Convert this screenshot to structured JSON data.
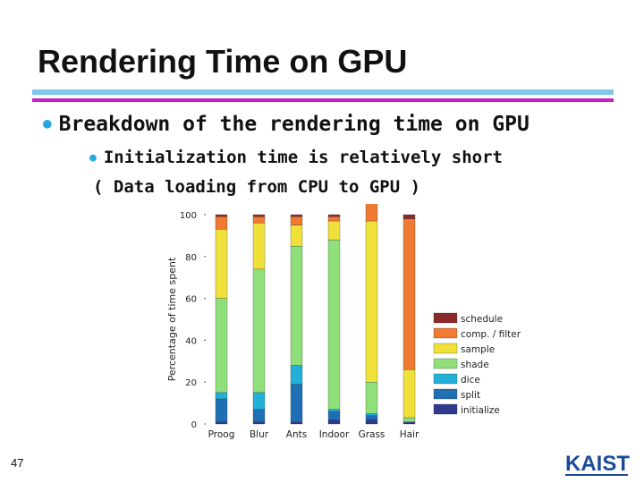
{
  "slide": {
    "title": "Rendering Time on GPU",
    "bullet1": "Breakdown of the rendering time on GPU",
    "bullet2_line1": "Initialization time is relatively short",
    "bullet2_line2": "( Data loading from CPU to GPU )",
    "bullet_glyph": "●",
    "page_number": "47",
    "logo": "KAIST"
  },
  "chart_data": {
    "type": "bar",
    "stacked": true,
    "ylabel": "Percentage of time spent",
    "xlabel": "",
    "ylim": [
      0,
      100
    ],
    "yticks": [
      0,
      20,
      40,
      60,
      80,
      100
    ],
    "categories": [
      "Proog",
      "Blur",
      "Ants",
      "Indoor",
      "Grass",
      "Hair"
    ],
    "series": [
      {
        "name": "initialize",
        "color": "#2e3a8c",
        "values": [
          1,
          1,
          1,
          2,
          2,
          1
        ]
      },
      {
        "name": "split",
        "color": "#1f6fb5",
        "values": [
          11,
          6,
          18,
          4,
          2,
          0
        ]
      },
      {
        "name": "dice",
        "color": "#22b0d8",
        "values": [
          3,
          8,
          9,
          1,
          1,
          0
        ]
      },
      {
        "name": "shade",
        "color": "#8fe07a",
        "values": [
          45,
          59,
          57,
          81,
          15,
          2
        ]
      },
      {
        "name": "sample",
        "color": "#f0e03a",
        "values": [
          33,
          22,
          10,
          9,
          77,
          23
        ]
      },
      {
        "name": "comp. / filter",
        "color": "#f07a32",
        "values": [
          6,
          3,
          4,
          2,
          11,
          72
        ]
      },
      {
        "name": "schedule",
        "color": "#8b2a2a",
        "values": [
          1,
          1,
          1,
          1,
          1,
          2
        ]
      }
    ],
    "legend_position": "right",
    "legend_order": [
      "schedule",
      "comp. / filter",
      "sample",
      "shade",
      "dice",
      "split",
      "initialize"
    ],
    "grid": false
  }
}
